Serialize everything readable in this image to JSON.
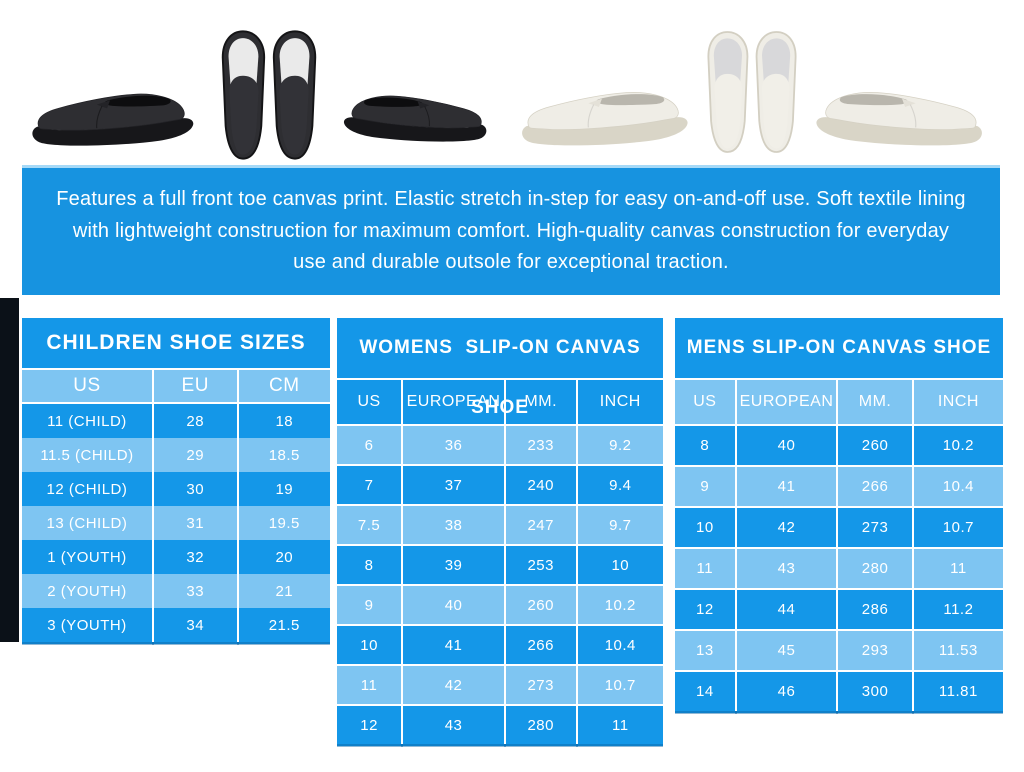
{
  "colors": {
    "banner_blue": "#1793e0",
    "banner_top_line": "#a6d9f7",
    "row_dark_blue": "#1497e8",
    "row_light_blue": "#7ec5f2",
    "separator_white": "#ffffff",
    "left_strip_dark": "#0b1118",
    "text_white": "#ffffff"
  },
  "product_photos": {
    "items": [
      {
        "alt": "black slip-on canvas shoe, side view facing left",
        "color": "black",
        "view": "side-left"
      },
      {
        "alt": "black slip-on canvas shoes, top view pair",
        "color": "black",
        "view": "top-pair"
      },
      {
        "alt": "black slip-on canvas shoe, side view facing right",
        "color": "black",
        "view": "side-right"
      },
      {
        "alt": "white slip-on canvas shoe, side view facing left",
        "color": "white",
        "view": "side-left"
      },
      {
        "alt": "white slip-on canvas shoes, top view pair",
        "color": "white",
        "view": "top-pair"
      },
      {
        "alt": "white slip-on canvas shoe, side view facing right",
        "color": "white",
        "view": "side-right"
      }
    ]
  },
  "banner": {
    "text": "Features a full front toe canvas print. Elastic stretch in-step for easy on-and-off use. Soft textile lining with lightweight construction for maximum comfort. High-quality canvas construction for everyday use and durable outsole for exceptional traction."
  },
  "tables": {
    "children": {
      "title": "CHILDREN SHOE SIZES",
      "headers": [
        "US",
        "EU",
        "CM"
      ],
      "rows": [
        [
          "11 (CHILD)",
          "28",
          "18"
        ],
        [
          "11.5 (CHILD)",
          "29",
          "18.5"
        ],
        [
          "12 (CHILD)",
          "30",
          "19"
        ],
        [
          "13 (CHILD)",
          "31",
          "19.5"
        ],
        [
          "1 (YOUTH)",
          "32",
          "20"
        ],
        [
          "2 (YOUTH)",
          "33",
          "21"
        ],
        [
          "3 (YOUTH)",
          "34",
          "21.5"
        ]
      ]
    },
    "womens": {
      "title": "WOMENS  SLIP-ON CANVAS SHOE",
      "headers": [
        "US",
        "EUROPEAN",
        "MM.",
        "INCH"
      ],
      "rows": [
        [
          "6",
          "36",
          "233",
          "9.2"
        ],
        [
          "7",
          "37",
          "240",
          "9.4"
        ],
        [
          "7.5",
          "38",
          "247",
          "9.7"
        ],
        [
          "8",
          "39",
          "253",
          "10"
        ],
        [
          "9",
          "40",
          "260",
          "10.2"
        ],
        [
          "10",
          "41",
          "266",
          "10.4"
        ],
        [
          "11",
          "42",
          "273",
          "10.7"
        ],
        [
          "12",
          "43",
          "280",
          "11"
        ]
      ]
    },
    "mens": {
      "title": "MENS SLIP-ON CANVAS SHOE",
      "headers": [
        "US",
        "EUROPEAN",
        "MM.",
        "INCH"
      ],
      "rows": [
        [
          "8",
          "40",
          "260",
          "10.2"
        ],
        [
          "9",
          "41",
          "266",
          "10.4"
        ],
        [
          "10",
          "42",
          "273",
          "10.7"
        ],
        [
          "11",
          "43",
          "280",
          "11"
        ],
        [
          "12",
          "44",
          "286",
          "11.2"
        ],
        [
          "13",
          "45",
          "293",
          "11.53"
        ],
        [
          "14",
          "46",
          "300",
          "11.81"
        ]
      ]
    }
  }
}
